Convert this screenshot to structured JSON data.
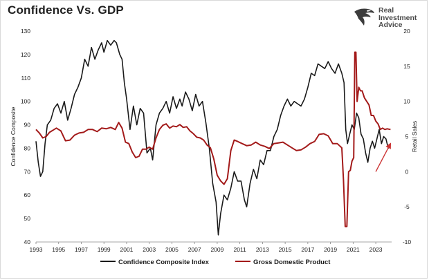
{
  "title": "Confidence Vs. GDP",
  "brand": {
    "line1": "Real",
    "line2": "Investment",
    "line3": "Advice"
  },
  "colors": {
    "confidence": "#1a1a1a",
    "gdp": "#a31a1a",
    "arrow": "#cc3333"
  },
  "chart_data": {
    "type": "line",
    "title": "Confidence Vs. GDP",
    "ylabel_left": "Confidence Composite",
    "ylabel_right": "Retail Sales",
    "ylim_left": [
      40,
      130
    ],
    "ylim_right": [
      -10,
      20
    ],
    "xlim": [
      1993,
      2024.4
    ],
    "x_ticks": [
      1993,
      1995,
      1997,
      1999,
      2001,
      2003,
      2005,
      2007,
      2009,
      2011,
      2013,
      2015,
      2017,
      2019,
      2021,
      2023
    ],
    "left_ticks": [
      40,
      50,
      60,
      70,
      80,
      90,
      100,
      110,
      120,
      130
    ],
    "right_ticks": [
      -10,
      -5,
      0,
      5,
      10,
      15,
      20
    ],
    "legend": "bottom",
    "series": [
      {
        "name": "Confidence Composite Index",
        "axis": "left",
        "color": "#1a1a1a",
        "x": [
          1993.0,
          1993.2,
          1993.4,
          1993.6,
          1993.8,
          1994.0,
          1994.3,
          1994.6,
          1994.9,
          1995.2,
          1995.5,
          1995.8,
          1996.1,
          1996.4,
          1996.7,
          1997.0,
          1997.3,
          1997.6,
          1997.9,
          1998.2,
          1998.5,
          1998.8,
          1999.0,
          1999.3,
          1999.6,
          1999.9,
          2000.1,
          2000.4,
          2000.6,
          2000.8,
          2001.0,
          2001.3,
          2001.6,
          2001.9,
          2002.2,
          2002.5,
          2002.8,
          2003.1,
          2003.3,
          2003.6,
          2003.9,
          2004.2,
          2004.5,
          2004.8,
          2005.1,
          2005.4,
          2005.7,
          2005.9,
          2006.2,
          2006.5,
          2006.8,
          2007.1,
          2007.4,
          2007.7,
          2008.0,
          2008.3,
          2008.6,
          2008.9,
          2009.1,
          2009.3,
          2009.6,
          2009.9,
          2010.2,
          2010.5,
          2010.8,
          2011.1,
          2011.4,
          2011.6,
          2011.9,
          2012.2,
          2012.5,
          2012.8,
          2013.1,
          2013.4,
          2013.7,
          2014.0,
          2014.3,
          2014.6,
          2014.9,
          2015.2,
          2015.5,
          2015.8,
          2016.1,
          2016.4,
          2016.7,
          2017.0,
          2017.3,
          2017.6,
          2017.9,
          2018.2,
          2018.5,
          2018.8,
          2019.1,
          2019.4,
          2019.7,
          2020.0,
          2020.2,
          2020.35,
          2020.5,
          2020.7,
          2020.9,
          2021.1,
          2021.3,
          2021.5,
          2021.7,
          2021.9,
          2022.1,
          2022.3,
          2022.5,
          2022.7,
          2022.9,
          2023.1,
          2023.3,
          2023.5,
          2023.7,
          2023.9,
          2024.1,
          2024.3
        ],
        "y": [
          83,
          74,
          68,
          70,
          82,
          90,
          92,
          97,
          99,
          95,
          100,
          92,
          97,
          103,
          106,
          110,
          118,
          115,
          123,
          118,
          122,
          125,
          121,
          126,
          124,
          126,
          125,
          120,
          118,
          108,
          101,
          88,
          98,
          90,
          97,
          95,
          78,
          80,
          75,
          90,
          95,
          97,
          100,
          95,
          102,
          97,
          101,
          98,
          104,
          101,
          96,
          103,
          98,
          100,
          91,
          80,
          65,
          57,
          43,
          52,
          60,
          58,
          63,
          70,
          66,
          66,
          58,
          55,
          65,
          71,
          67,
          75,
          73,
          79,
          79,
          85,
          88,
          94,
          98,
          101,
          98,
          100,
          99,
          98,
          101,
          106,
          112,
          111,
          116,
          115,
          114,
          117,
          114,
          112,
          116,
          112,
          108,
          88,
          82,
          86,
          90,
          88,
          95,
          93,
          86,
          84,
          78,
          74,
          80,
          83,
          80,
          84,
          88,
          82,
          85,
          84,
          80,
          82
        ],
        "line_width": 1.6
      },
      {
        "name": "Gross Domestic Product",
        "axis": "right",
        "color": "#a31a1a",
        "x": [
          1993.0,
          1993.3,
          1993.6,
          1993.9,
          1994.2,
          1994.5,
          1994.8,
          1995.2,
          1995.6,
          1996.0,
          1996.4,
          1996.8,
          1997.2,
          1997.6,
          1998.0,
          1998.4,
          1998.8,
          1999.2,
          1999.6,
          2000.0,
          2000.3,
          2000.6,
          2000.9,
          2001.2,
          2001.5,
          2001.8,
          2002.1,
          2002.4,
          2002.7,
          2003.0,
          2003.3,
          2003.6,
          2003.9,
          2004.2,
          2004.5,
          2004.8,
          2005.1,
          2005.4,
          2005.7,
          2006.0,
          2006.3,
          2006.6,
          2006.9,
          2007.2,
          2007.5,
          2007.8,
          2008.1,
          2008.4,
          2008.7,
          2009.0,
          2009.3,
          2009.6,
          2009.9,
          2010.2,
          2010.5,
          2010.8,
          2011.2,
          2011.6,
          2012.0,
          2012.4,
          2012.8,
          2013.2,
          2013.6,
          2014.0,
          2014.4,
          2014.8,
          2015.2,
          2015.6,
          2016.0,
          2016.4,
          2016.8,
          2017.2,
          2017.6,
          2018.0,
          2018.4,
          2018.8,
          2019.2,
          2019.6,
          2020.0,
          2020.15,
          2020.3,
          2020.45,
          2020.6,
          2020.75,
          2020.9,
          2021.05,
          2021.15,
          2021.25,
          2021.35,
          2021.5,
          2021.65,
          2021.8,
          2022.0,
          2022.2,
          2022.4,
          2022.6,
          2022.8,
          2023.0,
          2023.2,
          2023.4,
          2023.6,
          2023.8,
          2024.0,
          2024.3
        ],
        "y": [
          6.0,
          5.5,
          4.8,
          5.0,
          5.6,
          5.9,
          6.2,
          5.8,
          4.4,
          4.5,
          5.2,
          5.5,
          5.6,
          6.0,
          6.0,
          5.7,
          6.2,
          6.1,
          6.3,
          6.0,
          7.0,
          6.2,
          4.2,
          4.0,
          2.8,
          2.0,
          2.2,
          3.2,
          3.2,
          3.5,
          3.2,
          4.8,
          6.0,
          6.6,
          6.8,
          6.2,
          6.5,
          6.4,
          6.7,
          6.3,
          6.4,
          5.8,
          5.4,
          4.9,
          4.8,
          4.5,
          3.8,
          3.4,
          1.8,
          -0.5,
          -1.3,
          -1.8,
          -1.0,
          3.0,
          4.5,
          4.3,
          4.0,
          3.7,
          3.8,
          4.2,
          3.8,
          3.6,
          3.3,
          4.0,
          4.1,
          4.2,
          3.8,
          3.4,
          3.0,
          3.1,
          3.5,
          4.0,
          4.3,
          5.3,
          5.4,
          5.1,
          4.0,
          4.0,
          3.4,
          -1.2,
          -7.8,
          -7.8,
          0.0,
          0.2,
          1.5,
          2.0,
          17.0,
          17.0,
          10.0,
          12.0,
          11.5,
          11.5,
          10.5,
          10.0,
          9.5,
          8.0,
          8.0,
          7.2,
          6.8,
          6.0,
          6.2,
          6.0,
          6.1,
          6.0
        ],
        "line_width": 2.0
      }
    ],
    "annotations": [
      {
        "type": "arrow",
        "axis": "right",
        "from": [
          2023.0,
          0.0
        ],
        "to": [
          2024.3,
          4.0
        ],
        "color": "#cc3333"
      }
    ]
  },
  "legend": {
    "items": [
      {
        "label": "Confidence Composite Index",
        "color": "#1a1a1a"
      },
      {
        "label": "Gross Domestic Product",
        "color": "#a31a1a"
      }
    ]
  }
}
